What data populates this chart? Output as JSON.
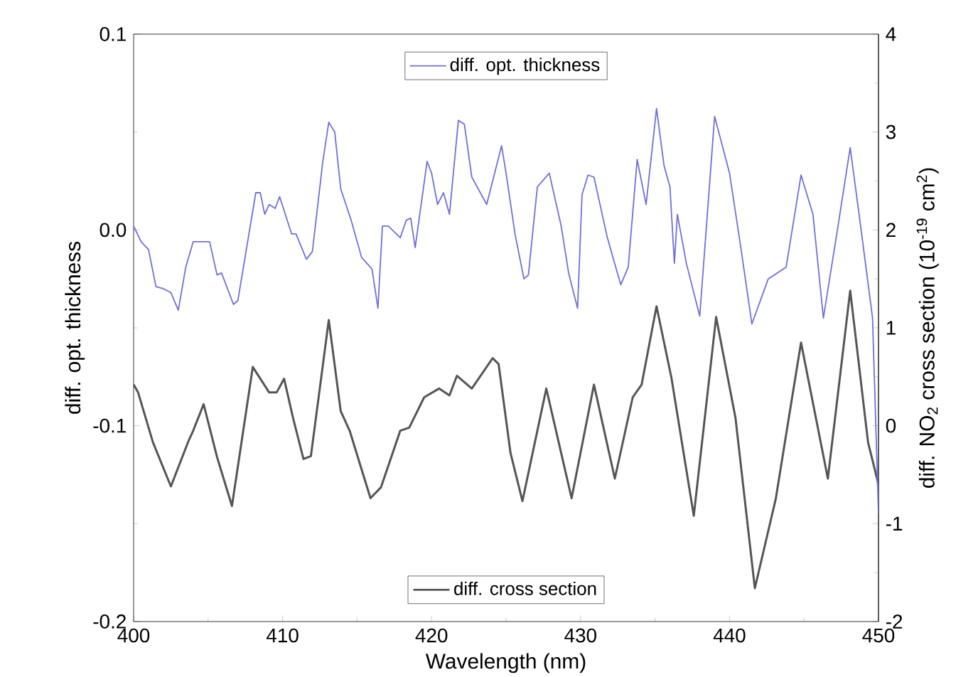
{
  "chart_data": {
    "type": "line",
    "xlabel": "Wavelength (nm)",
    "ylabel": "diff. opt. thickness",
    "y2label": "diff. NO$_{2}$ cross section (10$^{-19}$ cm$^{2}$)",
    "xlim": [
      400,
      450
    ],
    "xticks": [
      400,
      410,
      420,
      430,
      440,
      450
    ],
    "ylim": [
      -0.2,
      0.1
    ],
    "yticks": [
      -0.2,
      -0.1,
      {
        "value": 0,
        "label": "0.0"
      },
      0.1
    ],
    "y2lim": [
      -2,
      4
    ],
    "y2ticks": [
      -2,
      -1,
      0,
      1,
      2,
      3,
      4
    ],
    "legend": "top",
    "grid": false,
    "series": [
      {
        "name": "diff. opt. thickness",
        "color": "#6f6fdc",
        "axis": "y",
        "x": [
          400.0,
          400.5,
          401.0,
          401.5,
          402.0,
          402.5,
          403.0,
          403.5,
          404.0,
          405.1,
          405.6,
          405.9,
          406.7,
          407.0,
          408.2,
          408.5,
          408.8,
          409.1,
          409.5,
          409.8,
          410.6,
          410.9,
          411.6,
          412.0,
          412.7,
          413.1,
          413.5,
          413.9,
          414.6,
          415.3,
          416.0,
          416.4,
          416.7,
          417.1,
          417.9,
          418.3,
          418.6,
          418.9,
          419.7,
          420.0,
          420.4,
          420.8,
          421.2,
          421.8,
          422.2,
          422.7,
          423.7,
          424.1,
          424.7,
          425.0,
          425.6,
          426.2,
          426.5,
          427.1,
          427.9,
          428.7,
          429.2,
          429.8,
          430.1,
          430.5,
          430.9,
          431.8,
          432.7,
          433.2,
          433.8,
          434.4,
          435.1,
          435.6,
          436.0,
          436.3,
          436.5,
          437.1,
          438.0,
          439.0,
          440.0,
          440.7,
          441.5,
          442.6,
          443.8,
          444.8,
          445.6,
          446.3,
          447.2,
          448.1,
          448.8,
          449.6,
          450.0
        ],
        "values": [
          0.002,
          -0.006,
          -0.01,
          -0.029,
          -0.03,
          -0.032,
          -0.041,
          -0.019,
          -0.006,
          -0.006,
          -0.023,
          -0.022,
          -0.038,
          -0.036,
          0.019,
          0.019,
          0.008,
          0.013,
          0.011,
          0.017,
          -0.002,
          -0.002,
          -0.015,
          -0.011,
          0.035,
          0.055,
          0.05,
          0.021,
          0.005,
          -0.014,
          -0.02,
          -0.04,
          0.002,
          0.002,
          -0.004,
          0.005,
          0.006,
          -0.009,
          0.035,
          0.029,
          0.013,
          0.019,
          0.008,
          0.056,
          0.054,
          0.027,
          0.013,
          0.025,
          0.043,
          0.029,
          -0.002,
          -0.025,
          -0.023,
          0.022,
          0.029,
          0.002,
          -0.022,
          -0.04,
          0.018,
          0.028,
          0.027,
          -0.004,
          -0.028,
          -0.019,
          0.036,
          0.013,
          0.062,
          0.033,
          0.022,
          -0.017,
          0.008,
          -0.017,
          -0.044,
          0.058,
          0.029,
          -0.006,
          -0.048,
          -0.025,
          -0.019,
          0.028,
          0.008,
          -0.045,
          -0.002,
          0.042,
          0.002,
          -0.045,
          -0.145
        ]
      },
      {
        "name": "diff. cross section",
        "color": "#555555",
        "axis": "y2",
        "x": [
          400.0,
          400.3,
          401.3,
          402.5,
          403.7,
          404.0,
          404.7,
          405.6,
          406.6,
          408.0,
          409.1,
          409.6,
          410.1,
          410.7,
          411.4,
          411.9,
          413.1,
          413.9,
          414.5,
          415.9,
          416.6,
          417.9,
          418.5,
          419.5,
          420.5,
          421.2,
          421.7,
          422.7,
          424.1,
          424.5,
          425.3,
          426.1,
          427.7,
          429.4,
          430.9,
          432.3,
          433.5,
          434.1,
          435.1,
          436.1,
          437.6,
          439.1,
          440.4,
          441.7,
          443.1,
          444.0,
          444.8,
          446.6,
          448.1,
          449.3,
          450.0
        ],
        "values": [
          0.42,
          0.34,
          -0.17,
          -0.62,
          -0.15,
          -0.05,
          0.22,
          -0.32,
          -0.82,
          0.6,
          0.34,
          0.34,
          0.48,
          0.08,
          -0.34,
          -0.31,
          1.08,
          0.15,
          -0.05,
          -0.74,
          -0.63,
          -0.05,
          -0.02,
          0.29,
          0.38,
          0.31,
          0.51,
          0.38,
          0.69,
          0.63,
          -0.28,
          -0.77,
          0.38,
          -0.74,
          0.42,
          -0.54,
          0.29,
          0.42,
          1.22,
          0.49,
          -0.92,
          1.11,
          0.08,
          -1.66,
          -0.75,
          0.1,
          0.85,
          -0.54,
          1.38,
          -0.17,
          -0.6
        ]
      }
    ]
  }
}
